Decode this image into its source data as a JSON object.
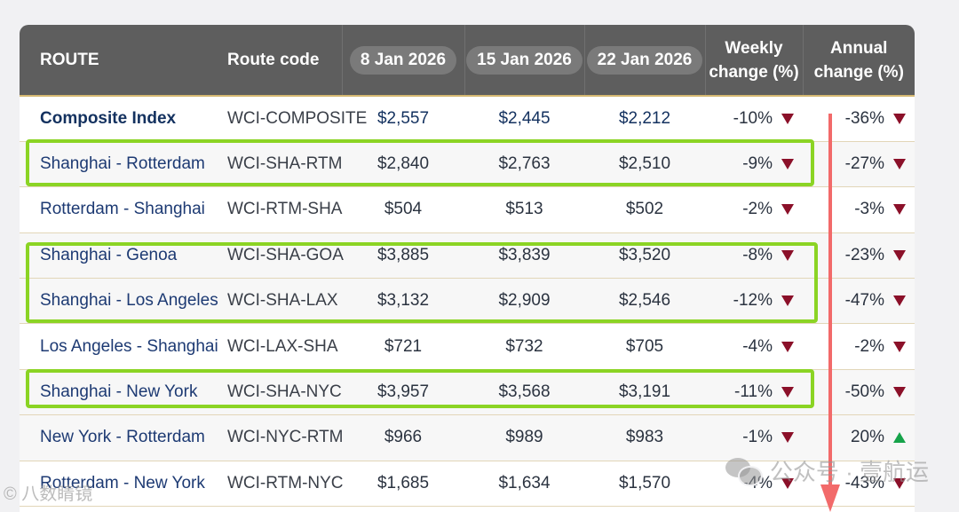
{
  "header": {
    "route": "ROUTE",
    "code": "Route code",
    "dates": [
      "8 Jan 2026",
      "15 Jan 2026",
      "22 Jan 2026"
    ],
    "weekly": [
      "Weekly",
      "change (%)"
    ],
    "annual": [
      "Annual",
      "change (%)"
    ]
  },
  "rows": [
    {
      "route": "Composite Index",
      "code": "WCI-COMPOSITE",
      "d1": "$2,557",
      "d2": "$2,445",
      "d3": "$2,212",
      "weekly": "-10%",
      "annual": "-36%",
      "annual_dir": "down"
    },
    {
      "route": "Shanghai - Rotterdam",
      "code": "WCI-SHA-RTM",
      "d1": "$2,840",
      "d2": "$2,763",
      "d3": "$2,510",
      "weekly": "-9%",
      "annual": "-27%",
      "annual_dir": "down"
    },
    {
      "route": "Rotterdam - Shanghai",
      "code": "WCI-RTM-SHA",
      "d1": "$504",
      "d2": "$513",
      "d3": "$502",
      "weekly": "-2%",
      "annual": "-3%",
      "annual_dir": "down"
    },
    {
      "route": "Shanghai - Genoa",
      "code": "WCI-SHA-GOA",
      "d1": "$3,885",
      "d2": "$3,839",
      "d3": "$3,520",
      "weekly": "-8%",
      "annual": "-23%",
      "annual_dir": "down"
    },
    {
      "route": "Shanghai - Los Angeles",
      "code": "WCI-SHA-LAX",
      "d1": "$3,132",
      "d2": "$2,909",
      "d3": "$2,546",
      "weekly": "-12%",
      "annual": "-47%",
      "annual_dir": "down"
    },
    {
      "route": "Los Angeles - Shanghai",
      "code": "WCI-LAX-SHA",
      "d1": "$721",
      "d2": "$732",
      "d3": "$705",
      "weekly": "-4%",
      "annual": "-2%",
      "annual_dir": "down"
    },
    {
      "route": "Shanghai - New York",
      "code": "WCI-SHA-NYC",
      "d1": "$3,957",
      "d2": "$3,568",
      "d3": "$3,191",
      "weekly": "-11%",
      "annual": "-50%",
      "annual_dir": "down"
    },
    {
      "route": "New York - Rotterdam",
      "code": "WCI-NYC-RTM",
      "d1": "$966",
      "d2": "$989",
      "d3": "$983",
      "weekly": "-1%",
      "annual": "20%",
      "annual_dir": "up"
    },
    {
      "route": "Rotterdam - New York",
      "code": "WCI-RTM-NYC",
      "d1": "$1,685",
      "d2": "$1,634",
      "d3": "$1,570",
      "weekly": "-4%",
      "annual": "-43%",
      "annual_dir": "down"
    }
  ],
  "watermark": "公众号 · 壹航运",
  "watermark_left": "© 八数睛镜",
  "colors": {
    "header_bg": "#5e5e5e",
    "highlight": "#8bd424",
    "arrow": "#f26a6a",
    "down": "#8b1029",
    "up": "#16a34a"
  }
}
